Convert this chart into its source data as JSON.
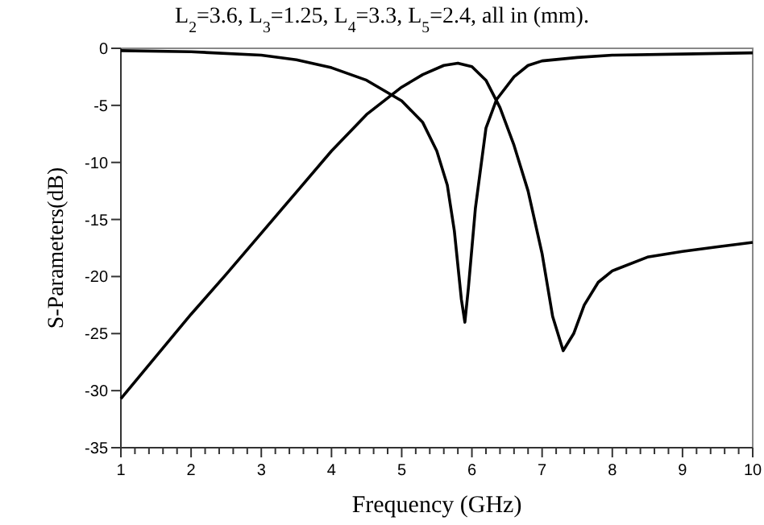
{
  "chart_data": {
    "type": "line",
    "xlabel": "Frequency (GHz)",
    "ylabel": "S-Parameters(dB)",
    "annotations": [
      "L$_{2}$=3.6, L$_{3}$=1.25, L$_{4}$=3.3, L$_{5}$=2.4, all in (mm)."
    ],
    "xlim": [
      1,
      10
    ],
    "ylim": [
      -35,
      0
    ],
    "xticks": [
      1,
      {
        "value": 1.2,
        "label": null
      },
      {
        "value": 1.4,
        "label": null
      },
      {
        "value": 1.6,
        "label": null
      },
      {
        "value": 1.8,
        "label": null
      },
      2,
      {
        "value": 2.2,
        "label": null
      },
      {
        "value": 2.4,
        "label": null
      },
      {
        "value": 2.6,
        "label": null
      },
      {
        "value": 2.8,
        "label": null
      },
      3,
      {
        "value": 3.2,
        "label": null
      },
      {
        "value": 3.4,
        "label": null
      },
      {
        "value": 3.6,
        "label": null
      },
      {
        "value": 3.8,
        "label": null
      },
      4,
      {
        "value": 4.2,
        "label": null
      },
      {
        "value": 4.4,
        "label": null
      },
      {
        "value": 4.6,
        "label": null
      },
      {
        "value": 4.8,
        "label": null
      },
      5,
      {
        "value": 5.2,
        "label": null
      },
      {
        "value": 5.4,
        "label": null
      },
      {
        "value": 5.6,
        "label": null
      },
      {
        "value": 5.8,
        "label": null
      },
      6,
      {
        "value": 6.2,
        "label": null
      },
      {
        "value": 6.4,
        "label": null
      },
      {
        "value": 6.6,
        "label": null
      },
      {
        "value": 6.8,
        "label": null
      },
      7,
      {
        "value": 7.2,
        "label": null
      },
      {
        "value": 7.4,
        "label": null
      },
      {
        "value": 7.6,
        "label": null
      },
      {
        "value": 7.8,
        "label": null
      },
      8,
      {
        "value": 8.2,
        "label": null
      },
      {
        "value": 8.4,
        "label": null
      },
      {
        "value": 8.6,
        "label": null
      },
      {
        "value": 8.8,
        "label": null
      },
      9,
      {
        "value": 9.2,
        "label": null
      },
      {
        "value": 9.4,
        "label": null
      },
      {
        "value": 9.6,
        "label": null
      },
      {
        "value": 9.8,
        "label": null
      },
      10
    ],
    "yticks": [
      -35,
      -30,
      -25,
      -20,
      -15,
      -10,
      -5,
      0
    ],
    "marker": "none",
    "line_style": "solid",
    "series": [
      {
        "color": "#000000",
        "x": [
          1,
          2,
          3,
          3.5,
          4,
          4.5,
          5,
          5.3,
          5.5,
          5.65,
          5.75,
          5.85,
          5.9,
          5.95,
          6.05,
          6.2,
          6.35,
          6.6,
          6.8,
          7,
          7.5,
          8,
          9,
          10
        ],
        "values": [
          -0.2,
          -0.3,
          -0.6,
          -1,
          -1.7,
          -2.8,
          -4.6,
          -6.5,
          -9,
          -12,
          -16,
          -22,
          -24,
          -21,
          -14,
          -7,
          -4.5,
          -2.5,
          -1.5,
          -1.1,
          -0.8,
          -0.6,
          -0.5,
          -0.4
        ]
      },
      {
        "color": "#000000",
        "x": [
          1,
          1.5,
          2,
          2.5,
          3,
          3.5,
          4,
          4.5,
          5,
          5.3,
          5.6,
          5.8,
          6,
          6.2,
          6.4,
          6.6,
          6.8,
          7,
          7.15,
          7.3,
          7.45,
          7.6,
          7.8,
          8,
          8.5,
          9,
          9.5,
          10
        ],
        "values": [
          -30.7,
          -27,
          -23.3,
          -19.8,
          -16.2,
          -12.6,
          -9,
          -5.8,
          -3.4,
          -2.3,
          -1.5,
          -1.3,
          -1.6,
          -2.8,
          -5.2,
          -8.5,
          -12.5,
          -18,
          -23.5,
          -26.5,
          -25,
          -22.5,
          -20.5,
          -19.5,
          -18.3,
          -17.8,
          -17.4,
          -17
        ]
      }
    ]
  }
}
